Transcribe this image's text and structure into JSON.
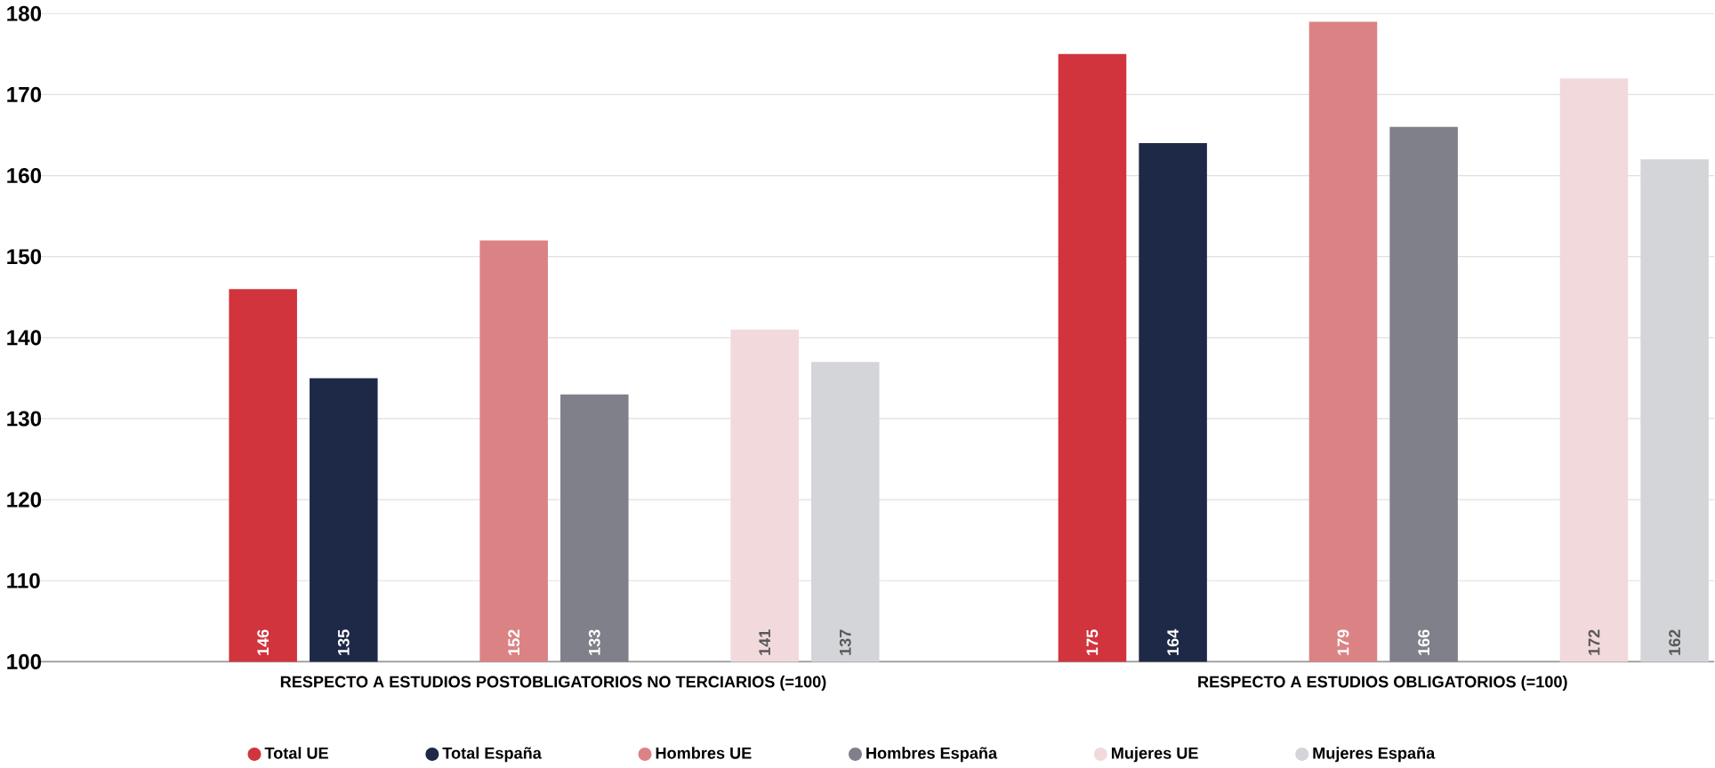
{
  "chart_data": {
    "type": "bar",
    "categories": [
      "RESPECTO A ESTUDIOS POSTOBLIGATORIOS NO TERCIARIOS (=100)",
      "RESPECTO A ESTUDIOS OBLIGATORIOS (=100)"
    ],
    "series": [
      {
        "name": "Total UE",
        "color": "#d1343d",
        "values": [
          146,
          175
        ]
      },
      {
        "name": "Total España",
        "color": "#1e2947",
        "values": [
          135,
          164
        ]
      },
      {
        "name": "Hombres UE",
        "color": "#db8384",
        "values": [
          152,
          179
        ]
      },
      {
        "name": "Hombres España",
        "color": "#7f8089",
        "values": [
          133,
          166
        ]
      },
      {
        "name": "Mujeres UE",
        "color": "#f2d9dc",
        "values": [
          141,
          172
        ]
      },
      {
        "name": "Mujeres España",
        "color": "#d4d5d9",
        "values": [
          137,
          162
        ]
      }
    ],
    "ylim": [
      100,
      180
    ],
    "yticks": [
      100,
      110,
      120,
      130,
      140,
      150,
      160,
      170,
      180
    ],
    "grid": "y",
    "legend": "bottom",
    "data_labels": true
  }
}
